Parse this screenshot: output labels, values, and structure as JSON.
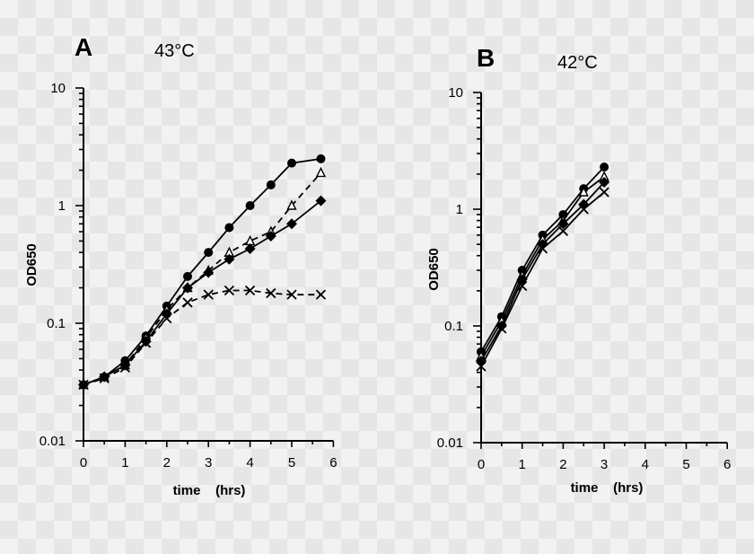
{
  "chart_data": [
    {
      "type": "line",
      "panel": "A",
      "title": "43°C",
      "xlabel": "time    (hrs)",
      "ylabel": "OD650",
      "xlim": [
        0,
        6
      ],
      "ylim": [
        0.01,
        10
      ],
      "yscale": "log",
      "xticks": [
        "0",
        "1",
        "2",
        "3",
        "4",
        "5",
        "6"
      ],
      "yticks": [
        "0.01",
        "0.1",
        "1",
        "10"
      ],
      "grid": false,
      "series": [
        {
          "marker": "circle",
          "dash": "solid",
          "x": [
            0,
            0.5,
            1,
            1.5,
            2,
            2.5,
            3,
            3.5,
            4,
            4.5,
            5,
            5.7
          ],
          "y": [
            0.03,
            0.035,
            0.048,
            0.078,
            0.14,
            0.25,
            0.4,
            0.65,
            1.0,
            1.5,
            2.3,
            2.5
          ]
        },
        {
          "marker": "triangle-open",
          "dash": "dashed",
          "x": [
            0,
            0.5,
            1,
            1.5,
            2,
            2.5,
            3,
            3.5,
            4,
            4.5,
            5,
            5.7
          ],
          "y": [
            0.03,
            0.035,
            0.044,
            0.075,
            0.13,
            0.2,
            0.28,
            0.4,
            0.5,
            0.6,
            1.0,
            1.9
          ]
        },
        {
          "marker": "diamond",
          "dash": "solid",
          "x": [
            0,
            0.5,
            1,
            1.5,
            2,
            2.5,
            3,
            3.5,
            4,
            4.5,
            5,
            5.7
          ],
          "y": [
            0.03,
            0.035,
            0.044,
            0.07,
            0.12,
            0.2,
            0.27,
            0.35,
            0.43,
            0.55,
            0.7,
            1.1
          ]
        },
        {
          "marker": "x",
          "dash": "dashed",
          "x": [
            0,
            0.5,
            1,
            1.5,
            2,
            2.5,
            3,
            3.5,
            4,
            4.5,
            5,
            5.7
          ],
          "y": [
            0.03,
            0.034,
            0.042,
            0.068,
            0.11,
            0.15,
            0.175,
            0.19,
            0.19,
            0.18,
            0.175,
            0.175
          ]
        }
      ]
    },
    {
      "type": "line",
      "panel": "B",
      "title": "42°C",
      "xlabel": "time    (hrs)",
      "ylabel": "OD650",
      "xlim": [
        0,
        6
      ],
      "ylim": [
        0.01,
        10
      ],
      "yscale": "log",
      "xticks": [
        "0",
        "1",
        "2",
        "3",
        "4",
        "5",
        "6"
      ],
      "yticks": [
        "0.01",
        "0.1",
        "1",
        "10"
      ],
      "grid": false,
      "series": [
        {
          "marker": "circle",
          "dash": "solid",
          "x": [
            0,
            0.5,
            1,
            1.5,
            2,
            2.5,
            3
          ],
          "y": [
            0.06,
            0.12,
            0.3,
            0.6,
            0.9,
            1.5,
            2.3
          ]
        },
        {
          "marker": "triangle-open",
          "dash": "solid",
          "x": [
            0,
            0.5,
            1,
            1.5,
            2,
            2.5,
            3
          ],
          "y": [
            0.055,
            0.11,
            0.27,
            0.55,
            0.8,
            1.4,
            1.9
          ]
        },
        {
          "marker": "diamond",
          "dash": "solid",
          "x": [
            0,
            0.5,
            1,
            1.5,
            2,
            2.5,
            3
          ],
          "y": [
            0.05,
            0.1,
            0.25,
            0.5,
            0.75,
            1.1,
            1.7
          ]
        },
        {
          "marker": "x",
          "dash": "solid",
          "x": [
            0,
            0.5,
            1,
            1.5,
            2,
            2.5,
            3
          ],
          "y": [
            0.045,
            0.095,
            0.22,
            0.46,
            0.65,
            1.0,
            1.4
          ]
        }
      ]
    }
  ]
}
